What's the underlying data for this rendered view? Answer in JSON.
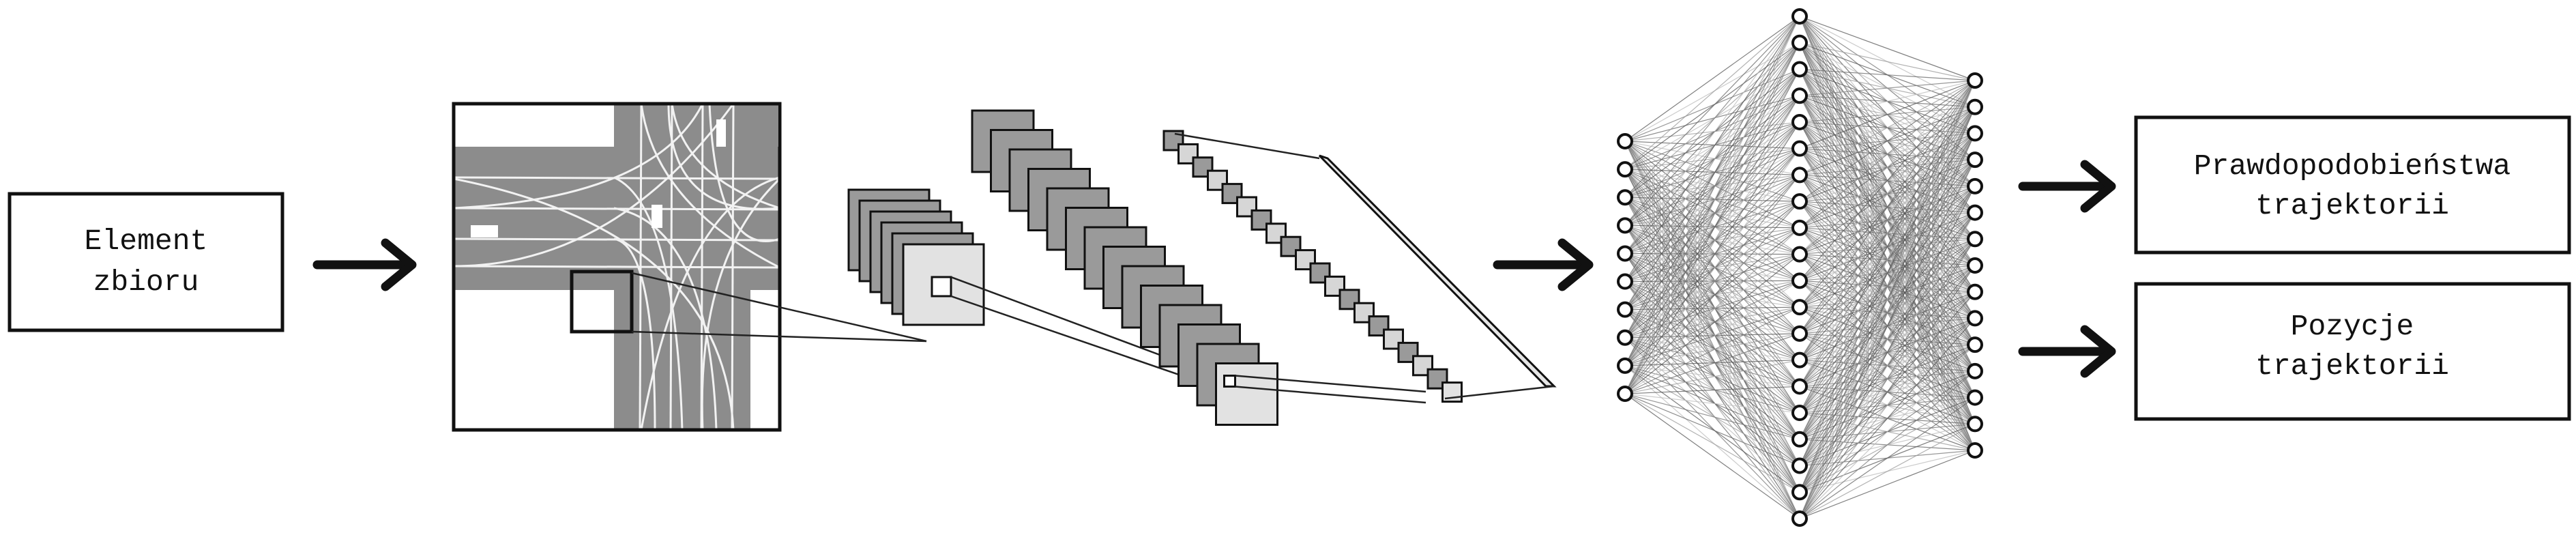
{
  "input_box": {
    "line1": "Element",
    "line2": "zbioru"
  },
  "output_boxes": [
    {
      "line1": "Prawdopodobieństwa",
      "line2": "trajektorii"
    },
    {
      "line1": "Pozycje",
      "line2": "trajektorii"
    }
  ],
  "network": {
    "input_layer_nodes": 10,
    "hidden_layer_nodes": 20,
    "output_layer_nodes": 15
  },
  "cnn": {
    "block1_maps": 6,
    "block2_maps": 14,
    "block3_maps": 20
  },
  "colors": {
    "stroke": "#111111",
    "road_gray": "#8c8c8c",
    "feature_dark": "#9a9a9a",
    "feature_light": "#e2e2e2",
    "edge_gray": "#666666"
  }
}
